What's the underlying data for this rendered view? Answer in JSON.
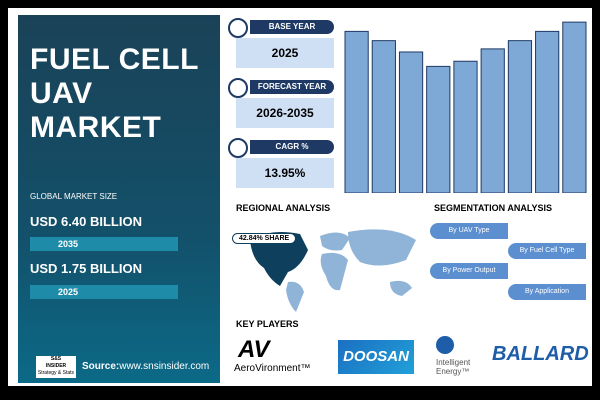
{
  "title": [
    "FUEL CELL",
    "UAV MARKET"
  ],
  "market_size": {
    "label": "GLOBAL MARKET SIZE",
    "items": [
      {
        "value": "USD 6.40 BILLION",
        "year": "2035"
      },
      {
        "value": "USD 1.75 BILLION",
        "year": "2025"
      }
    ]
  },
  "cards": [
    {
      "label": "BASE YEAR",
      "value": "2025"
    },
    {
      "label": "FORECAST YEAR",
      "value": "2026-2035"
    },
    {
      "label": "CAGR %",
      "value": "13.95%"
    }
  ],
  "chart_data": {
    "type": "bar",
    "values": [
      157,
      148,
      137,
      123,
      128,
      140,
      148,
      157,
      166
    ],
    "color": "#7ea9d6",
    "ylim": [
      0,
      170
    ]
  },
  "regional": {
    "title": "REGIONAL ANALYSIS",
    "share": "42.84% SHARE"
  },
  "segmentation": {
    "title": "SEGMENTATION ANALYSIS",
    "segments": [
      "By UAV Type",
      "By Fuel Cell Type",
      "By Power Output",
      "By Application"
    ]
  },
  "key_players": {
    "title": "KEY PLAYERS",
    "logos": [
      "AV",
      "AeroVironment™",
      "DOOSAN",
      "Intelligent",
      "Energy™",
      "BALLARD"
    ]
  },
  "source": {
    "label": "Source:",
    "url": "www.snsinsider.com"
  },
  "brand": [
    "S&S",
    "INSIDER",
    "Strategy & Stats"
  ]
}
